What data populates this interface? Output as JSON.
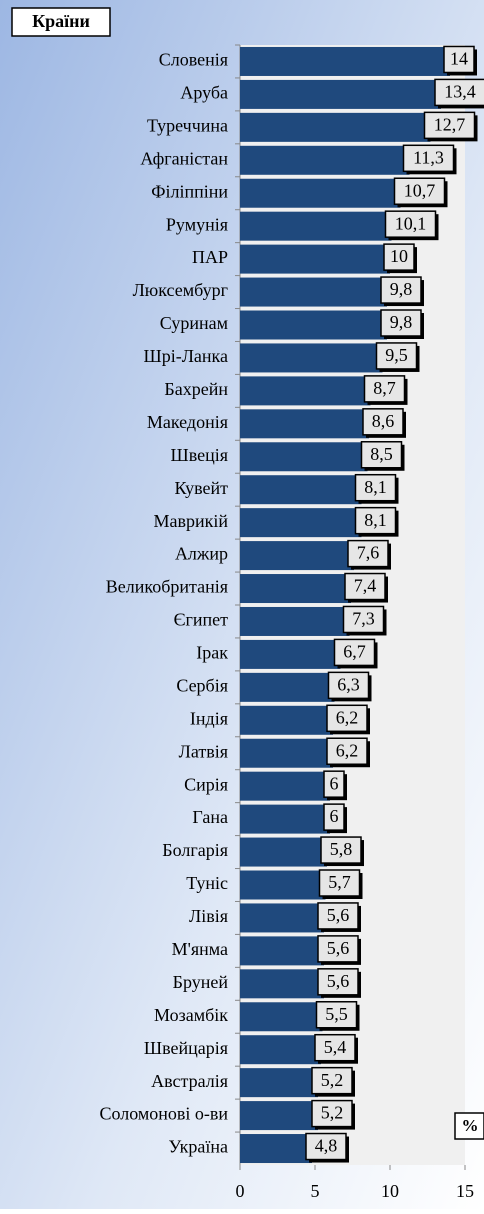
{
  "chart_data": {
    "type": "bar",
    "orientation": "horizontal",
    "title": "Країни",
    "x_label": "%",
    "categories": [
      "Словенія",
      "Аруба",
      "Туреччина",
      "Афганістан",
      "Філіппіни",
      "Румунія",
      "ПАР",
      "Люксембург",
      "Суринам",
      "Шрі-Ланка",
      "Бахрейн",
      "Македонія",
      "Швеція",
      "Кувейт",
      "Маврикій",
      "Алжир",
      "Великобританія",
      "Єгипет",
      "Ірак",
      "Сербія",
      "Індія",
      "Латвія",
      "Сирія",
      "Гана",
      "Болгарія",
      "Туніс",
      "Лівія",
      "М'янма",
      "Бруней",
      "Мозамбік",
      "Швейцарія",
      "Австралія",
      "Соломонові о-ви",
      "Україна"
    ],
    "values": [
      14,
      13.4,
      12.7,
      11.3,
      10.7,
      10.1,
      10,
      9.8,
      9.8,
      9.5,
      8.7,
      8.6,
      8.5,
      8.1,
      8.1,
      7.6,
      7.4,
      7.3,
      6.7,
      6.3,
      6.2,
      6.2,
      6,
      6,
      5.8,
      5.7,
      5.6,
      5.6,
      5.6,
      5.5,
      5.4,
      5.2,
      5.2,
      4.8
    ],
    "value_labels": [
      "14",
      "13,4",
      "12,7",
      "11,3",
      "10,7",
      "10,1",
      "10",
      "9,8",
      "9,8",
      "9,5",
      "8,7",
      "8,6",
      "8,5",
      "8,1",
      "8,1",
      "7,6",
      "7,4",
      "7,3",
      "6,7",
      "6,3",
      "6,2",
      "6,2",
      "6",
      "6",
      "5,8",
      "5,7",
      "5,6",
      "5,6",
      "5,6",
      "5,5",
      "5,4",
      "5,2",
      "5,2",
      "4,8"
    ],
    "color": "#1f497d",
    "xlim": [
      0,
      15
    ],
    "xticks": [
      0,
      5,
      10,
      15
    ]
  }
}
